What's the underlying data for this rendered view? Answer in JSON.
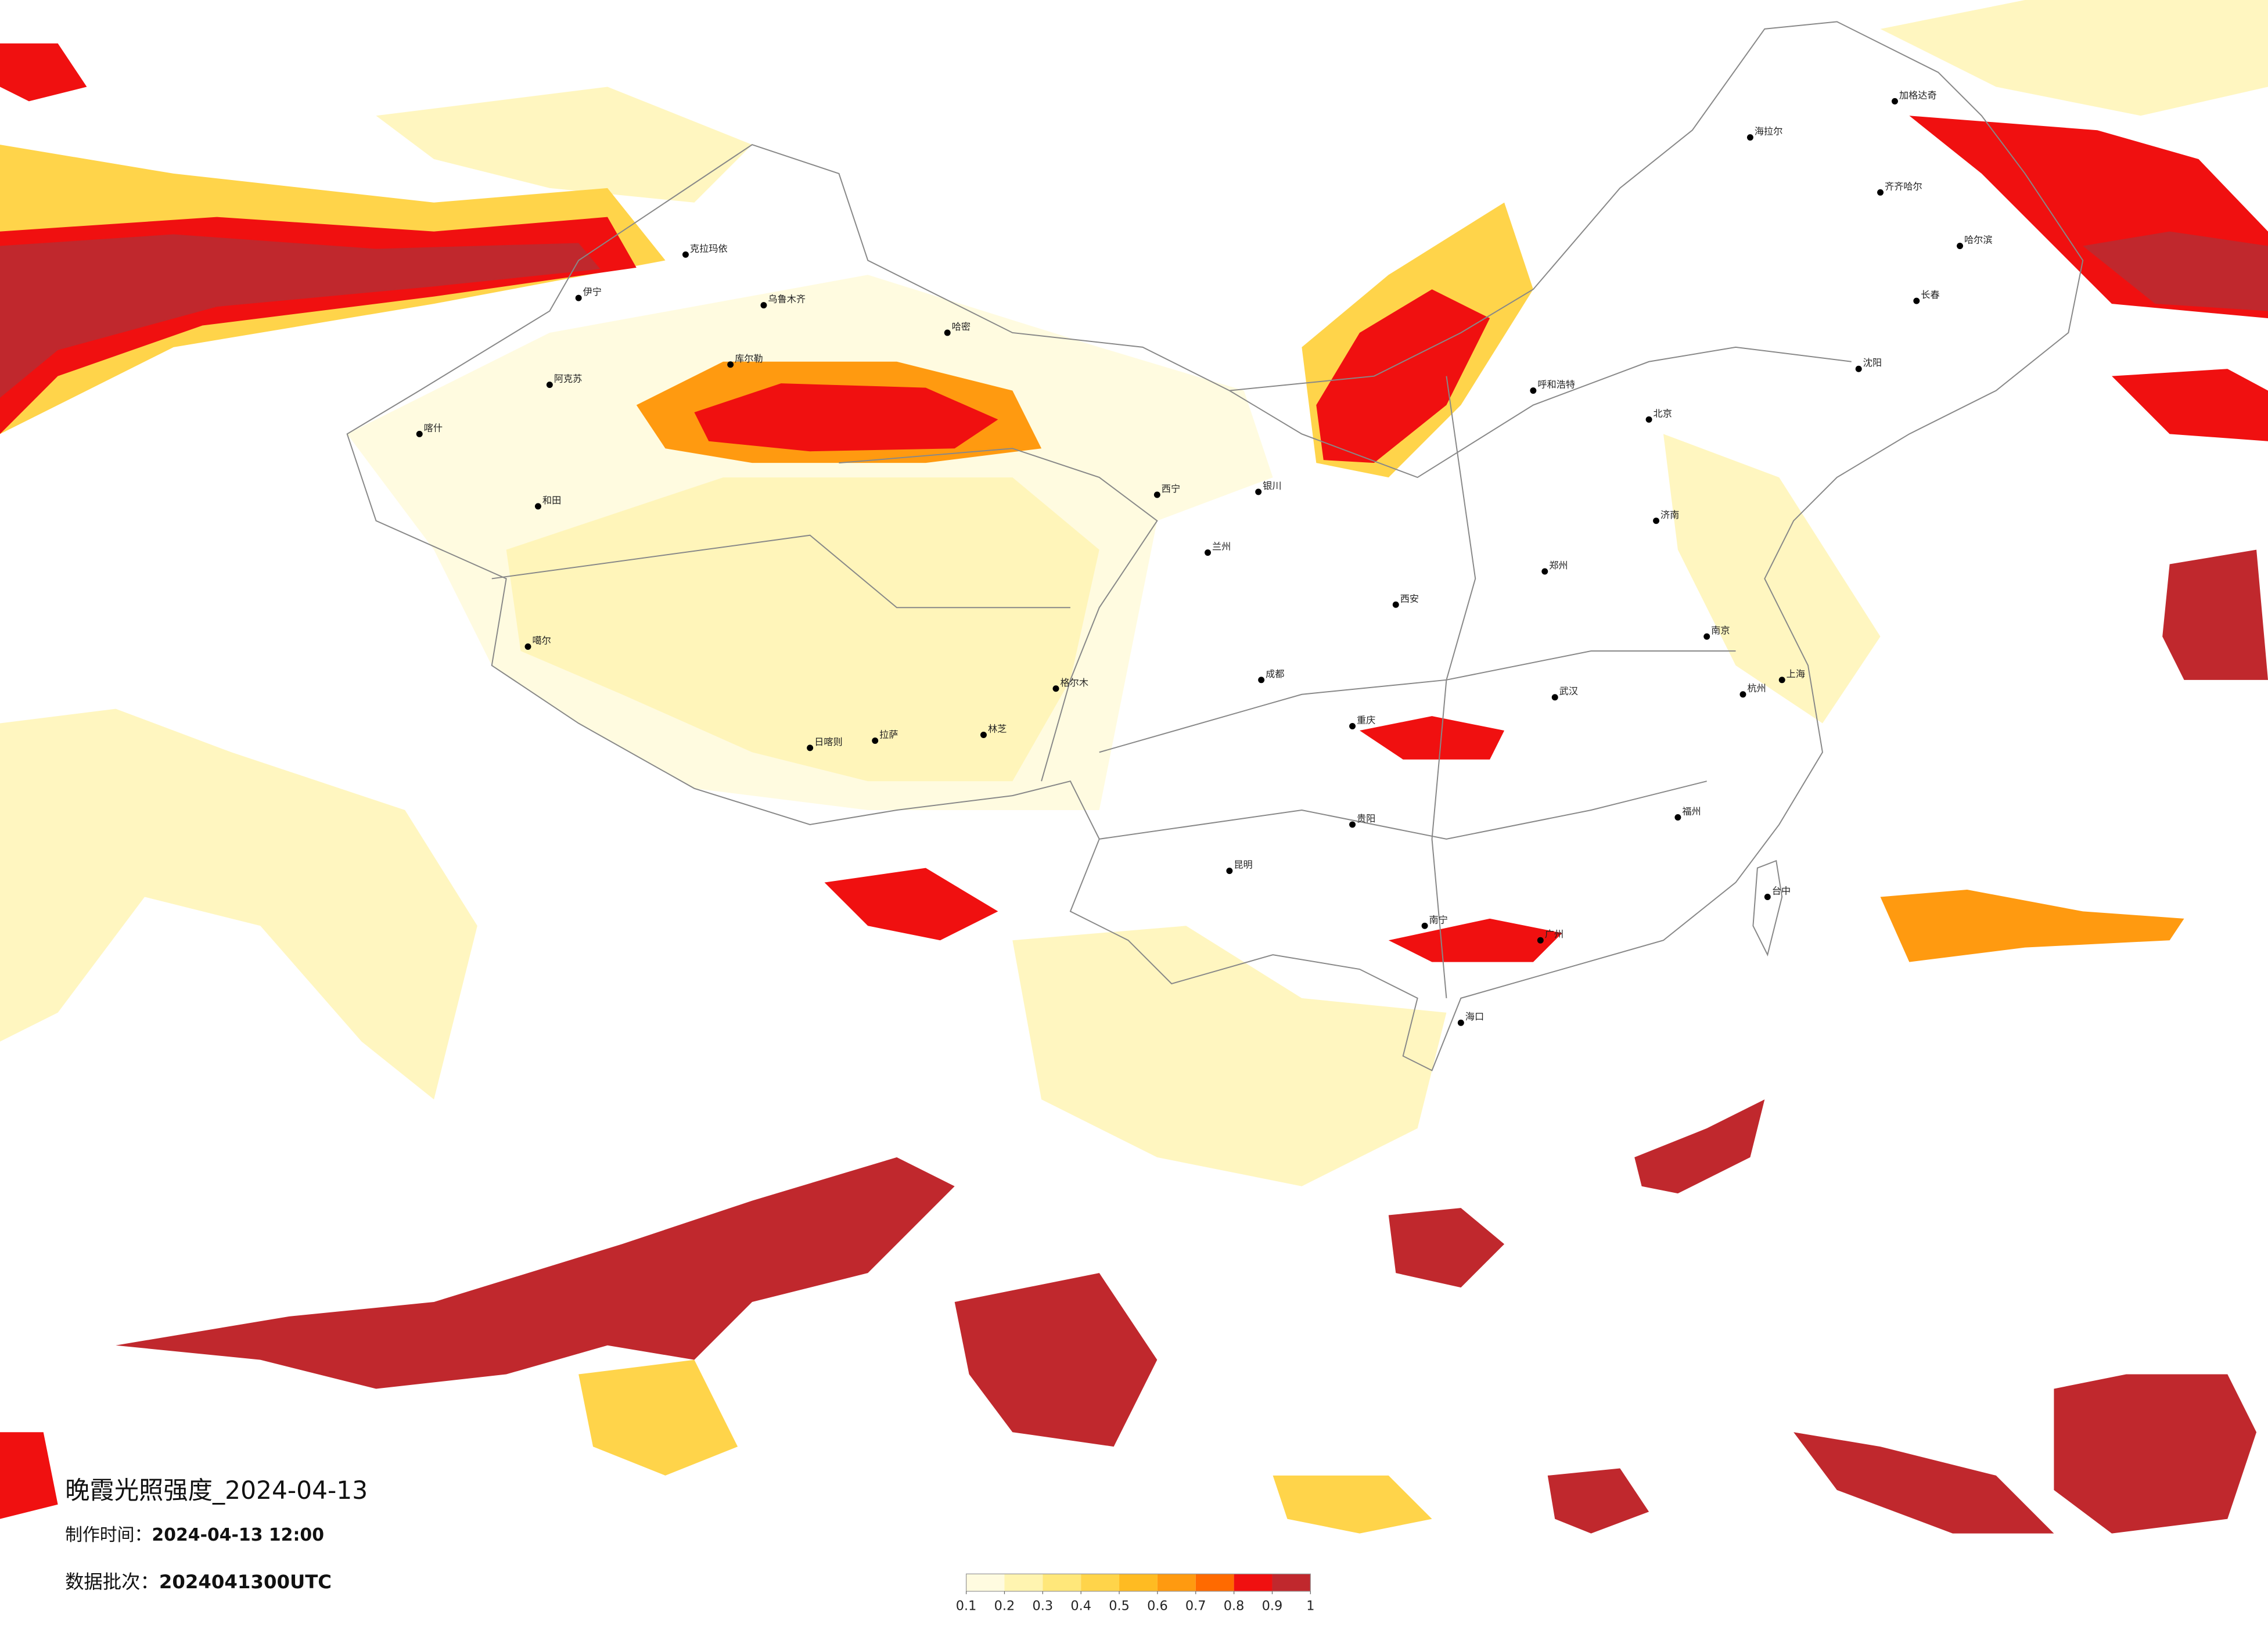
{
  "header": {
    "title": "晚霞光照强度_2024-04-13",
    "made_label": "制作时间：",
    "made_time": "2024-04-13 12:00",
    "batch_label": "数据批次：",
    "batch": "2024041300UTC"
  },
  "colorbar": {
    "colors": [
      "#fffbe0",
      "#fff4b0",
      "#ffe77a",
      "#ffd44a",
      "#ffbb22",
      "#ff9a10",
      "#ff6a00",
      "#f01010",
      "#c0282d"
    ],
    "ticks": [
      0.1,
      0.2,
      0.3,
      0.4,
      0.5,
      0.6,
      0.7,
      0.8,
      0.9,
      1
    ]
  },
  "cities": [
    "克拉玛依",
    "伊宁",
    "乌鲁木齐",
    "哈密",
    "库尔勒",
    "阿克苏",
    "喀什",
    "和田",
    "噶尔",
    "日喀则",
    "拉萨",
    "林芝",
    "格尔木",
    "西宁",
    "兰州",
    "银川",
    "呼和浩特",
    "北京",
    "海拉尔",
    "加格达奇",
    "齐齐哈尔",
    "哈尔滨",
    "长春",
    "沈阳",
    "上海",
    "武汉",
    "成都",
    "重庆",
    "贵阳",
    "昆明",
    "南宁",
    "广州",
    "海口",
    "台中",
    "西安",
    "郑州",
    "济南",
    "南京",
    "杭州",
    "福州"
  ]
}
